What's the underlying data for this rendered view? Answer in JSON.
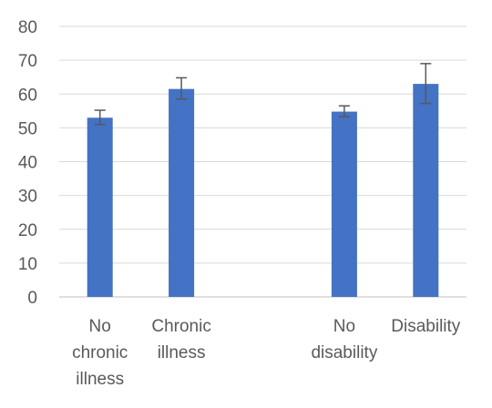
{
  "chart_data": {
    "type": "bar",
    "title": "",
    "xlabel": "",
    "ylabel": "",
    "ylim": [
      0,
      80
    ],
    "yticks": [
      0,
      10,
      20,
      30,
      40,
      50,
      60,
      70,
      80
    ],
    "grid": true,
    "legend": "none",
    "bar_color": "#4472C4",
    "error_bar_color": "#595959",
    "categories": [
      "No chronic illness",
      "Chronic illness",
      "",
      "No disability",
      "Disability"
    ],
    "category_label_lines": [
      [
        "No",
        "chronic",
        "illness"
      ],
      [
        "Chronic",
        "illness"
      ],
      [],
      [
        "No",
        "disability"
      ],
      [
        "Disability"
      ]
    ],
    "values": [
      53,
      61.5,
      null,
      54.8,
      63
    ],
    "error_low": [
      51,
      58.5,
      null,
      53.3,
      57.2
    ],
    "error_high": [
      55.2,
      64.8,
      null,
      56.5,
      69
    ]
  }
}
